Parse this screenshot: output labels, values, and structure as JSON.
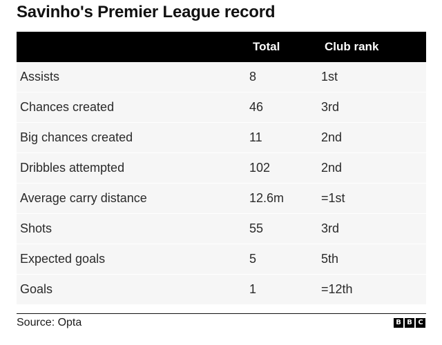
{
  "title": "Savinho's Premier League record",
  "table": {
    "headers": {
      "metric": "",
      "total": "Total",
      "rank": "Club rank"
    },
    "rows": [
      {
        "metric": "Assists",
        "total": "8",
        "rank": "1st"
      },
      {
        "metric": "Chances created",
        "total": "46",
        "rank": "3rd"
      },
      {
        "metric": "Big chances created",
        "total": "11",
        "rank": "2nd"
      },
      {
        "metric": "Dribbles attempted",
        "total": "102",
        "rank": "2nd"
      },
      {
        "metric": "Average carry distance",
        "total": "12.6m",
        "rank": "=1st"
      },
      {
        "metric": "Shots",
        "total": "55",
        "rank": "3rd"
      },
      {
        "metric": "Expected goals",
        "total": "5",
        "rank": "5th"
      },
      {
        "metric": "Goals",
        "total": "1",
        "rank": "=12th"
      }
    ]
  },
  "source": "Source: Opta",
  "logo": {
    "letters": [
      "B",
      "B",
      "C"
    ]
  },
  "colors": {
    "header_bg": "#000000",
    "header_text": "#ffffff",
    "row_bg": "#f6f6f6"
  },
  "chart_data": {
    "type": "table",
    "title": "Savinho's Premier League record",
    "columns": [
      "",
      "Total",
      "Club rank"
    ],
    "rows": [
      [
        "Assists",
        "8",
        "1st"
      ],
      [
        "Chances created",
        "46",
        "3rd"
      ],
      [
        "Big chances created",
        "11",
        "2nd"
      ],
      [
        "Dribbles attempted",
        "102",
        "2nd"
      ],
      [
        "Average carry distance",
        "12.6m",
        "=1st"
      ],
      [
        "Shots",
        "55",
        "3rd"
      ],
      [
        "Expected goals",
        "5",
        "5th"
      ],
      [
        "Goals",
        "1",
        "=12th"
      ]
    ]
  }
}
